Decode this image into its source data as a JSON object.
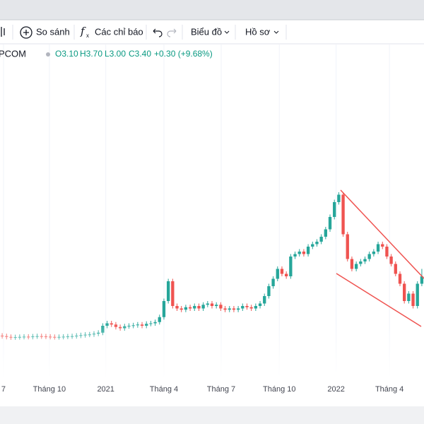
{
  "toolbar": {
    "compare": "So sánh",
    "indicators": "Các chỉ báo",
    "chart": "Biểu đồ",
    "profile": "Hồ sơ"
  },
  "legend": {
    "symbol": "PCOM",
    "open": "O3.10",
    "high": "H3.70",
    "low": "L3.00",
    "close": "C3.40",
    "change": "+0.30 (+9.68%)"
  },
  "chart_data": {
    "type": "candlestick",
    "up_color": "#26a69a",
    "down_color": "#ef5350",
    "xlim": [
      -0.5,
      96.5
    ],
    "ylim": [
      0,
      12
    ],
    "xticks": [
      {
        "value": 0.3,
        "label": "7"
      },
      {
        "value": 10.8,
        "label": "Tháng 10"
      },
      {
        "value": 23.7,
        "label": "2021"
      },
      {
        "value": 37.0,
        "label": "Tháng 4"
      },
      {
        "value": 50.1,
        "label": "Tháng 7"
      },
      {
        "value": 63.4,
        "label": "Tháng 10"
      },
      {
        "value": 76.4,
        "label": "2022"
      },
      {
        "value": 88.6,
        "label": "Tháng 4"
      }
    ],
    "grid": true,
    "open": [
      1.0,
      0.98,
      0.95,
      0.93,
      0.94,
      0.95,
      0.96,
      0.95,
      0.97,
      0.98,
      0.97,
      0.96,
      0.95,
      0.94,
      0.95,
      0.96,
      0.97,
      0.98,
      1.0,
      1.02,
      1.04,
      1.05,
      1.08,
      1.12,
      1.4,
      1.5,
      1.45,
      1.35,
      1.3,
      1.38,
      1.4,
      1.42,
      1.45,
      1.4,
      1.48,
      1.5,
      1.55,
      1.75,
      2.4,
      3.2,
      2.2,
      2.1,
      2.05,
      2.15,
      2.1,
      2.2,
      2.1,
      2.25,
      2.3,
      2.2,
      2.25,
      2.1,
      2.05,
      2.1,
      2.05,
      2.1,
      2.2,
      2.15,
      2.1,
      2.2,
      2.3,
      2.6,
      3.0,
      3.3,
      3.7,
      3.5,
      3.4,
      4.2,
      4.3,
      4.4,
      4.3,
      4.6,
      4.7,
      4.8,
      5.0,
      5.3,
      5.8,
      6.4,
      6.7,
      5.1,
      4.1,
      3.7,
      3.9,
      4.0,
      4.1,
      4.3,
      4.4,
      4.7,
      4.6,
      4.2,
      3.9,
      3.5,
      3.1,
      2.4,
      2.7,
      2.2,
      3.1
    ],
    "high": [
      1.1,
      1.08,
      1.05,
      1.04,
      1.05,
      1.06,
      1.06,
      1.07,
      1.08,
      1.08,
      1.07,
      1.06,
      1.05,
      1.05,
      1.06,
      1.07,
      1.08,
      1.1,
      1.12,
      1.14,
      1.15,
      1.18,
      1.22,
      1.5,
      1.6,
      1.6,
      1.55,
      1.45,
      1.48,
      1.5,
      1.52,
      1.55,
      1.55,
      1.58,
      1.6,
      1.65,
      1.85,
      2.5,
      3.3,
      3.3,
      2.3,
      2.2,
      2.25,
      2.25,
      2.3,
      2.3,
      2.35,
      2.4,
      2.4,
      2.35,
      2.35,
      2.2,
      2.2,
      2.2,
      2.2,
      2.3,
      2.3,
      2.25,
      2.3,
      2.4,
      2.7,
      3.1,
      3.4,
      3.8,
      3.8,
      3.6,
      4.3,
      4.4,
      4.5,
      4.5,
      4.7,
      4.8,
      4.9,
      5.1,
      5.4,
      5.9,
      6.5,
      6.8,
      6.8,
      5.2,
      4.2,
      4.0,
      4.1,
      4.2,
      4.4,
      4.5,
      4.8,
      4.8,
      4.7,
      4.3,
      4.0,
      3.6,
      3.2,
      2.8,
      2.8,
      3.2,
      3.7
    ],
    "low": [
      0.88,
      0.85,
      0.83,
      0.83,
      0.84,
      0.85,
      0.85,
      0.85,
      0.87,
      0.87,
      0.86,
      0.85,
      0.84,
      0.84,
      0.85,
      0.86,
      0.87,
      0.88,
      0.9,
      0.92,
      0.94,
      0.95,
      0.98,
      1.02,
      1.3,
      1.35,
      1.25,
      1.2,
      1.2,
      1.28,
      1.3,
      1.32,
      1.3,
      1.3,
      1.38,
      1.4,
      1.45,
      1.65,
      2.3,
      2.1,
      2.0,
      1.95,
      1.95,
      2.0,
      2.0,
      2.0,
      2.0,
      2.15,
      2.1,
      2.1,
      2.0,
      1.95,
      1.95,
      1.95,
      1.95,
      2.0,
      2.05,
      2.0,
      2.0,
      2.1,
      2.2,
      2.5,
      2.9,
      3.2,
      3.4,
      3.3,
      3.3,
      4.1,
      4.2,
      4.2,
      4.2,
      4.5,
      4.6,
      4.7,
      4.9,
      5.2,
      5.7,
      6.3,
      5.0,
      4.0,
      3.6,
      3.6,
      3.8,
      3.9,
      4.0,
      4.2,
      4.3,
      4.5,
      4.1,
      3.8,
      3.4,
      3.0,
      2.3,
      2.3,
      2.1,
      2.1,
      3.0
    ],
    "close": [
      0.98,
      0.95,
      0.93,
      0.94,
      0.95,
      0.96,
      0.95,
      0.97,
      0.98,
      0.97,
      0.96,
      0.95,
      0.94,
      0.95,
      0.96,
      0.97,
      0.98,
      1.0,
      1.02,
      1.04,
      1.05,
      1.08,
      1.12,
      1.4,
      1.5,
      1.45,
      1.35,
      1.3,
      1.38,
      1.4,
      1.42,
      1.45,
      1.4,
      1.48,
      1.5,
      1.55,
      1.75,
      2.4,
      3.2,
      2.2,
      2.1,
      2.05,
      2.15,
      2.1,
      2.2,
      2.1,
      2.25,
      2.3,
      2.2,
      2.25,
      2.1,
      2.05,
      2.1,
      2.05,
      2.1,
      2.2,
      2.15,
      2.1,
      2.2,
      2.3,
      2.6,
      3.0,
      3.3,
      3.7,
      3.5,
      3.4,
      4.2,
      4.3,
      4.4,
      4.3,
      4.6,
      4.7,
      4.8,
      5.0,
      5.3,
      5.8,
      6.4,
      6.7,
      5.1,
      4.1,
      3.7,
      3.9,
      4.0,
      4.1,
      4.3,
      4.4,
      4.7,
      4.6,
      4.2,
      3.9,
      3.5,
      3.1,
      2.4,
      2.7,
      2.2,
      3.1,
      3.4
    ]
  }
}
